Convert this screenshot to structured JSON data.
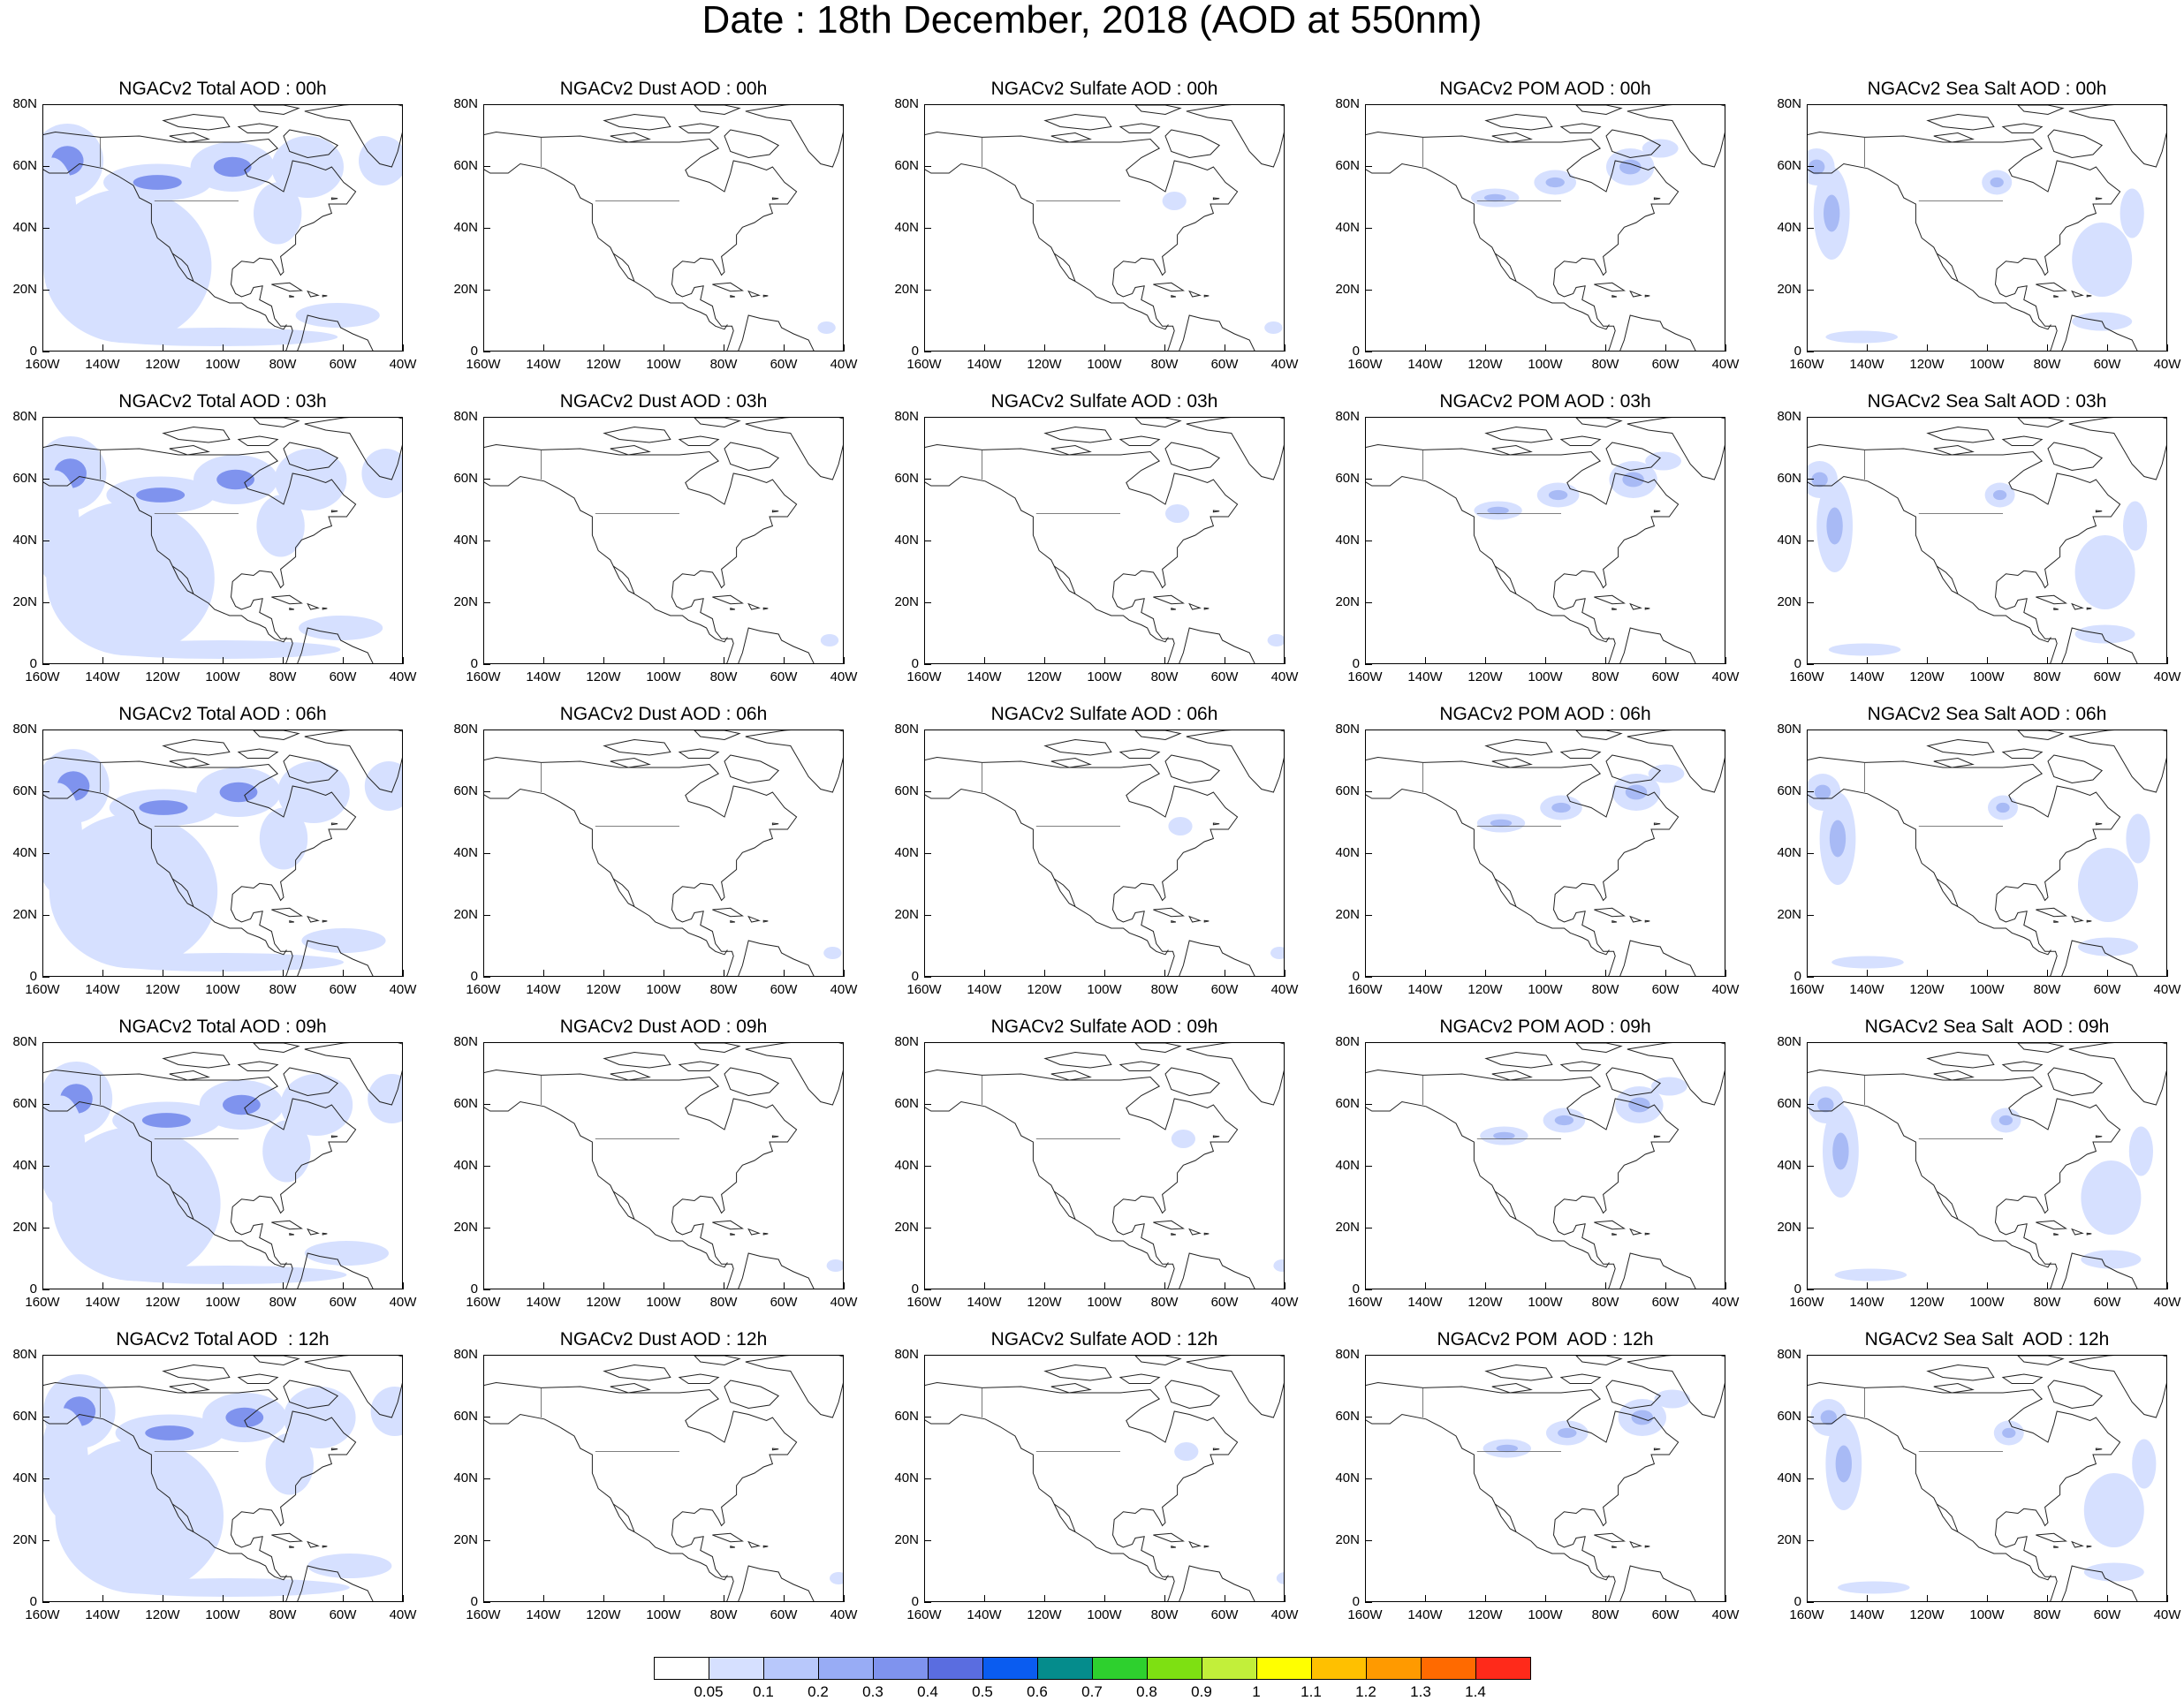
{
  "title": "Date : 18th December, 2018 (AOD at 550nm)",
  "colors": {
    "aod_low": "#d6e0ff",
    "aod_mid": "#a8baf5",
    "aod_high": "#7f93ee",
    "aod_peak": "#5a6de0",
    "coast": "#222222"
  },
  "axes": {
    "y_ticks": [
      "80N",
      "60N",
      "40N",
      "20N",
      "0"
    ],
    "x_ticks": [
      "160W",
      "140W",
      "120W",
      "100W",
      "80W",
      "60W",
      "40W"
    ]
  },
  "columns": [
    {
      "variable": "Total",
      "intensity": 3
    },
    {
      "variable": "Dust",
      "intensity": 0
    },
    {
      "variable": "Sulfate",
      "intensity": 0.3
    },
    {
      "variable": "POM",
      "intensity": 1.5
    },
    {
      "variable": "Sea Salt",
      "intensity": 2
    }
  ],
  "panels": [
    [
      "NGACv2 Total AOD : 00h",
      "NGACv2 Dust AOD : 00h",
      "NGACv2 Sulfate AOD : 00h",
      "NGACv2 POM AOD : 00h",
      "NGACv2 Sea Salt AOD : 00h"
    ],
    [
      "NGACv2 Total AOD : 03h",
      "NGACv2 Dust AOD : 03h",
      "NGACv2 Sulfate AOD : 03h",
      "NGACv2 POM AOD : 03h",
      "NGACv2 Sea Salt AOD : 03h"
    ],
    [
      "NGACv2 Total AOD : 06h",
      "NGACv2 Dust AOD : 06h",
      "NGACv2 Sulfate AOD : 06h",
      "NGACv2 POM AOD : 06h",
      "NGACv2 Sea Salt AOD : 06h"
    ],
    [
      "NGACv2 Total AOD : 09h",
      "NGACv2 Dust AOD : 09h",
      "NGACv2 Sulfate AOD : 09h",
      "NGACv2 POM AOD : 09h",
      "NGACv2 Sea Salt  AOD : 09h"
    ],
    [
      "NGACv2 Total AOD  : 12h",
      "NGACv2 Dust AOD : 12h",
      "NGACv2 Sulfate AOD : 12h",
      "NGACv2 POM  AOD : 12h",
      "NGACv2 Sea Salt  AOD : 12h"
    ]
  ],
  "colorbar": {
    "labels": [
      "0.05",
      "0.1",
      "0.2",
      "0.3",
      "0.4",
      "0.5",
      "0.6",
      "0.7",
      "0.8",
      "0.9",
      "1",
      "1.1",
      "1.2",
      "1.3",
      "1.4"
    ],
    "colors": [
      "#ffffff",
      "#d6e0ff",
      "#b8c8fb",
      "#98acf5",
      "#7f93ee",
      "#5a6de0",
      "#0a5cf0",
      "#058c8c",
      "#2ed02e",
      "#7ee012",
      "#c2ef3a",
      "#ffff00",
      "#ffc000",
      "#ff9a00",
      "#ff6a00",
      "#ff2a1a"
    ]
  }
}
